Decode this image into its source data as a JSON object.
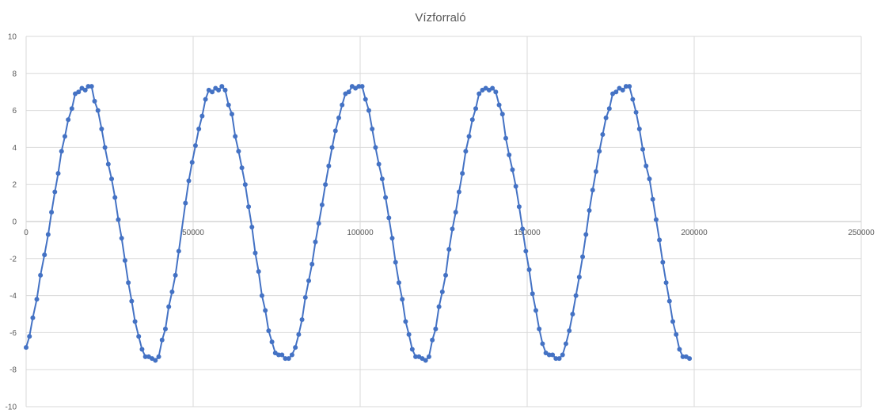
{
  "chart_data": {
    "type": "scatter",
    "title": "Vízforraló",
    "xlabel": "",
    "ylabel": "",
    "xlim": [
      0,
      250000
    ],
    "ylim": [
      -10,
      10
    ],
    "x_ticks": [
      0,
      50000,
      100000,
      150000,
      200000,
      250000
    ],
    "y_ticks": [
      -10,
      -8,
      -6,
      -4,
      -2,
      0,
      2,
      4,
      6,
      8,
      10
    ],
    "grid": true,
    "legend": "none",
    "series_color": "#4472C4",
    "series": [
      {
        "points": [
          [
            0,
            -6.8
          ],
          [
            1000,
            -6.2
          ],
          [
            2000,
            -5.2
          ],
          [
            3200,
            -4.2
          ],
          [
            4300,
            -2.9
          ],
          [
            5500,
            -1.8
          ],
          [
            6600,
            -0.7
          ],
          [
            7600,
            0.5
          ],
          [
            8600,
            1.6
          ],
          [
            9600,
            2.6
          ],
          [
            10600,
            3.8
          ],
          [
            11600,
            4.6
          ],
          [
            12600,
            5.5
          ],
          [
            13700,
            6.1
          ],
          [
            14700,
            6.9
          ],
          [
            15700,
            7.0
          ],
          [
            16700,
            7.2
          ],
          [
            17700,
            7.1
          ],
          [
            18600,
            7.3
          ],
          [
            19600,
            7.3
          ],
          [
            20500,
            6.5
          ],
          [
            21500,
            6.0
          ],
          [
            22600,
            5.0
          ],
          [
            23600,
            4.0
          ],
          [
            24600,
            3.1
          ],
          [
            25600,
            2.3
          ],
          [
            26600,
            1.3
          ],
          [
            27600,
            0.1
          ],
          [
            28600,
            -0.9
          ],
          [
            29600,
            -2.1
          ],
          [
            30600,
            -3.3
          ],
          [
            31600,
            -4.3
          ],
          [
            32600,
            -5.4
          ],
          [
            33700,
            -6.2
          ],
          [
            34700,
            -6.9
          ],
          [
            35700,
            -7.3
          ],
          [
            36700,
            -7.3
          ],
          [
            37700,
            -7.4
          ],
          [
            38700,
            -7.5
          ],
          [
            39700,
            -7.3
          ],
          [
            40700,
            -6.4
          ],
          [
            41700,
            -5.8
          ],
          [
            42700,
            -4.6
          ],
          [
            43700,
            -3.8
          ],
          [
            44700,
            -2.9
          ],
          [
            45700,
            -1.6
          ],
          [
            47700,
            1.0
          ],
          [
            48700,
            2.2
          ],
          [
            49700,
            3.2
          ],
          [
            50700,
            4.1
          ],
          [
            51700,
            5.0
          ],
          [
            52700,
            5.7
          ],
          [
            53700,
            6.6
          ],
          [
            54700,
            7.1
          ],
          [
            55700,
            7.0
          ],
          [
            56700,
            7.2
          ],
          [
            57600,
            7.1
          ],
          [
            58600,
            7.3
          ],
          [
            59600,
            7.1
          ],
          [
            60600,
            6.3
          ],
          [
            61600,
            5.8
          ],
          [
            62600,
            4.6
          ],
          [
            63600,
            3.8
          ],
          [
            64600,
            2.9
          ],
          [
            65600,
            2.0
          ],
          [
            66600,
            0.8
          ],
          [
            67600,
            -0.3
          ],
          [
            68600,
            -1.7
          ],
          [
            69600,
            -2.7
          ],
          [
            70600,
            -4.0
          ],
          [
            71600,
            -4.8
          ],
          [
            72600,
            -5.9
          ],
          [
            73600,
            -6.5
          ],
          [
            74600,
            -7.1
          ],
          [
            75600,
            -7.2
          ],
          [
            76600,
            -7.2
          ],
          [
            77600,
            -7.4
          ],
          [
            78600,
            -7.4
          ],
          [
            79600,
            -7.2
          ],
          [
            80600,
            -6.8
          ],
          [
            81600,
            -6.1
          ],
          [
            82600,
            -5.3
          ],
          [
            83600,
            -4.1
          ],
          [
            84600,
            -3.2
          ],
          [
            85600,
            -2.3
          ],
          [
            86600,
            -1.1
          ],
          [
            87600,
            -0.1
          ],
          [
            88600,
            0.9
          ],
          [
            89600,
            2.0
          ],
          [
            90600,
            3.0
          ],
          [
            91600,
            4.0
          ],
          [
            92600,
            4.9
          ],
          [
            93600,
            5.6
          ],
          [
            94600,
            6.3
          ],
          [
            95600,
            6.9
          ],
          [
            96600,
            7.0
          ],
          [
            97600,
            7.3
          ],
          [
            98600,
            7.2
          ],
          [
            99600,
            7.3
          ],
          [
            100600,
            7.3
          ],
          [
            101600,
            6.6
          ],
          [
            102600,
            6.0
          ],
          [
            103600,
            5.0
          ],
          [
            104600,
            4.0
          ],
          [
            105600,
            3.1
          ],
          [
            106600,
            2.3
          ],
          [
            107600,
            1.3
          ],
          [
            108600,
            0.2
          ],
          [
            109600,
            -0.9
          ],
          [
            110600,
            -2.2
          ],
          [
            111600,
            -3.3
          ],
          [
            112600,
            -4.2
          ],
          [
            113600,
            -5.4
          ],
          [
            114600,
            -6.1
          ],
          [
            115600,
            -6.9
          ],
          [
            116600,
            -7.3
          ],
          [
            117600,
            -7.3
          ],
          [
            118600,
            -7.4
          ],
          [
            119600,
            -7.5
          ],
          [
            120600,
            -7.3
          ],
          [
            121600,
            -6.4
          ],
          [
            122600,
            -5.8
          ],
          [
            123600,
            -4.6
          ],
          [
            124600,
            -3.8
          ],
          [
            125600,
            -2.9
          ],
          [
            126600,
            -1.5
          ],
          [
            127600,
            -0.4
          ],
          [
            128600,
            0.5
          ],
          [
            129600,
            1.6
          ],
          [
            130600,
            2.6
          ],
          [
            131600,
            3.8
          ],
          [
            132600,
            4.6
          ],
          [
            133600,
            5.5
          ],
          [
            134600,
            6.1
          ],
          [
            135600,
            6.9
          ],
          [
            136600,
            7.1
          ],
          [
            137600,
            7.2
          ],
          [
            138600,
            7.1
          ],
          [
            139600,
            7.2
          ],
          [
            140600,
            7.0
          ],
          [
            141600,
            6.3
          ],
          [
            142600,
            5.8
          ],
          [
            143600,
            4.5
          ],
          [
            144600,
            3.6
          ],
          [
            145600,
            2.8
          ],
          [
            146600,
            1.9
          ],
          [
            147600,
            0.8
          ],
          [
            148600,
            -0.4
          ],
          [
            149600,
            -1.6
          ],
          [
            150600,
            -2.6
          ],
          [
            151600,
            -3.9
          ],
          [
            152600,
            -4.8
          ],
          [
            153600,
            -5.8
          ],
          [
            154600,
            -6.6
          ],
          [
            155600,
            -7.1
          ],
          [
            156600,
            -7.2
          ],
          [
            157600,
            -7.2
          ],
          [
            158600,
            -7.4
          ],
          [
            159600,
            -7.4
          ],
          [
            160600,
            -7.2
          ],
          [
            161600,
            -6.6
          ],
          [
            162600,
            -5.9
          ],
          [
            163600,
            -5.0
          ],
          [
            164600,
            -4.0
          ],
          [
            165600,
            -3.0
          ],
          [
            166600,
            -1.9
          ],
          [
            167600,
            -0.7
          ],
          [
            168600,
            0.6
          ],
          [
            169600,
            1.7
          ],
          [
            170600,
            2.7
          ],
          [
            171600,
            3.8
          ],
          [
            172600,
            4.7
          ],
          [
            173600,
            5.6
          ],
          [
            174600,
            6.1
          ],
          [
            175600,
            6.9
          ],
          [
            176600,
            7.0
          ],
          [
            177600,
            7.2
          ],
          [
            178600,
            7.1
          ],
          [
            179600,
            7.3
          ],
          [
            180600,
            7.3
          ],
          [
            181600,
            6.6
          ],
          [
            182600,
            5.9
          ],
          [
            183600,
            5.0
          ],
          [
            184600,
            3.9
          ],
          [
            185600,
            3.0
          ],
          [
            186600,
            2.3
          ],
          [
            187600,
            1.2
          ],
          [
            188600,
            0.1
          ],
          [
            189600,
            -1.0
          ],
          [
            190600,
            -2.2
          ],
          [
            191600,
            -3.3
          ],
          [
            192600,
            -4.3
          ],
          [
            193600,
            -5.4
          ],
          [
            194600,
            -6.1
          ],
          [
            195600,
            -6.9
          ],
          [
            196600,
            -7.3
          ],
          [
            197600,
            -7.3
          ],
          [
            198600,
            -7.4
          ]
        ]
      }
    ]
  }
}
